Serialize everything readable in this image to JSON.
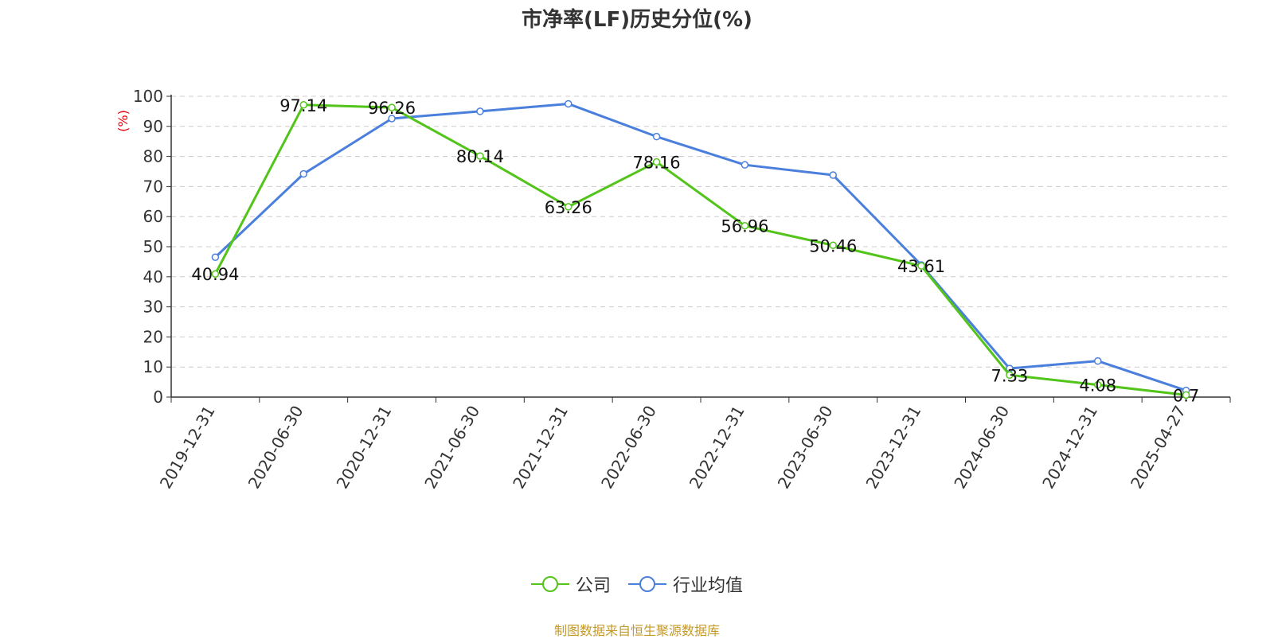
{
  "chart_data": {
    "type": "line",
    "title": "市净率(LF)历史分位(%)",
    "ylabel": "(%)",
    "ylim": [
      0,
      100
    ],
    "yticks": [
      0,
      10,
      20,
      30,
      40,
      50,
      60,
      70,
      80,
      90,
      100
    ],
    "categories": [
      "2019-12-31",
      "2020-06-30",
      "2020-12-31",
      "2021-06-30",
      "2021-12-31",
      "2022-06-30",
      "2022-12-31",
      "2023-06-30",
      "2023-12-31",
      "2024-06-30",
      "2024-12-31",
      "2025-04-27"
    ],
    "grid": true,
    "legend_position": "bottom",
    "series": [
      {
        "name": "公司",
        "color": "#52c41a",
        "values": [
          40.94,
          97.14,
          96.26,
          80.14,
          63.26,
          78.16,
          56.96,
          50.46,
          43.61,
          7.33,
          4.08,
          0.7
        ],
        "labels": [
          "40.94",
          "97.14",
          "96.26",
          "80.14",
          "63.26",
          "78.16",
          "56.96",
          "50.46",
          "43.61",
          "7.33",
          "4.08",
          "0.7"
        ]
      },
      {
        "name": "行业均值",
        "color": "#4a7fdc",
        "values": [
          46.5,
          74.2,
          92.6,
          95.0,
          97.5,
          86.6,
          77.2,
          73.8,
          43.9,
          9.5,
          12.0,
          2.2
        ]
      }
    ]
  },
  "source": "制图数据来自恒生聚源数据库"
}
